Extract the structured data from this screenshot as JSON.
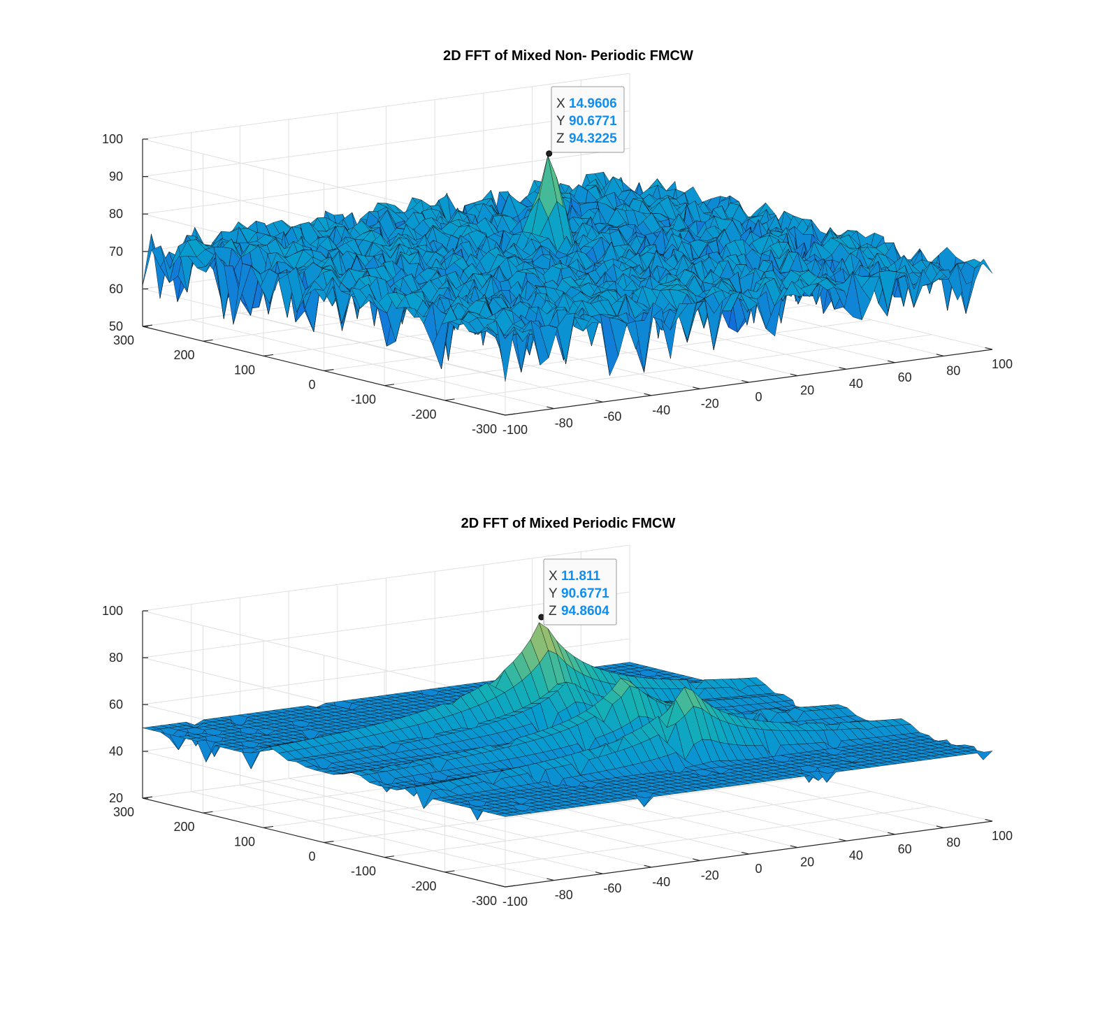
{
  "chart_data": [
    {
      "type": "surface",
      "title": "2D FFT of Mixed Non- Periodic FMCW",
      "xlabel": "",
      "ylabel": "",
      "zlabel": "",
      "xlim": [
        -100,
        100
      ],
      "ylim": [
        -300,
        300
      ],
      "zlim": [
        50,
        100
      ],
      "xticks": [
        "-100",
        "-80",
        "-60",
        "-40",
        "-20",
        "0",
        "20",
        "40",
        "60",
        "80",
        "100"
      ],
      "yticks": [
        "300",
        "200",
        "100",
        "0",
        "-100",
        "-200",
        "-300"
      ],
      "zticks": [
        "100",
        "90",
        "80",
        "70",
        "60",
        "50"
      ],
      "grid": true,
      "colormap": "parula",
      "description_of_surface": "noise floor",
      "noise_floor_z": [
        60,
        75
      ],
      "peak": {
        "x": 14.9606,
        "y": 90.6771,
        "z": 94.3225
      },
      "datatip": {
        "x_key": "X",
        "x_val": "14.9606",
        "y_key": "Y",
        "y_val": "90.6771",
        "z_key": "Z",
        "z_val": "94.3225"
      }
    },
    {
      "type": "surface",
      "title": "2D FFT of Mixed Periodic FMCW",
      "xlabel": "",
      "ylabel": "",
      "zlabel": "",
      "xlim": [
        -100,
        100
      ],
      "ylim": [
        -300,
        300
      ],
      "zlim": [
        20,
        100
      ],
      "xticks": [
        "-100",
        "-80",
        "-60",
        "-40",
        "-20",
        "0",
        "20",
        "40",
        "60",
        "80",
        "100"
      ],
      "yticks": [
        "300",
        "200",
        "100",
        "0",
        "-100",
        "-200",
        "-300"
      ],
      "zticks": [
        "100",
        "80",
        "60",
        "40",
        "20"
      ],
      "grid": true,
      "colormap": "parula",
      "ridges_y": [
        -150,
        -50,
        50,
        90.6771
      ],
      "ridge_peak_z": [
        82,
        80,
        72,
        94.8604
      ],
      "peak": {
        "x": 11.811,
        "y": 90.6771,
        "z": 94.8604
      },
      "datatip": {
        "x_key": "X",
        "x_val": "11.811",
        "y_key": "Y",
        "y_val": "90.6771",
        "z_key": "Z",
        "z_val": "94.8604"
      }
    }
  ],
  "colors": {
    "axis": "#262626",
    "grid": "#e0e0e0",
    "mesh_edge": "#000000",
    "datatip_value": "#0e8ef0",
    "datatip_border": "#9a9a9a"
  }
}
